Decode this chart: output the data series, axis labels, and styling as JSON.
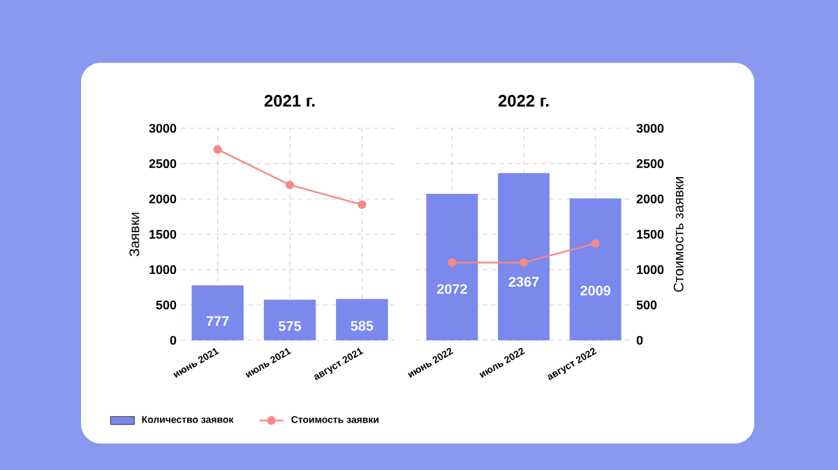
{
  "chart_data": [
    {
      "type": "bar",
      "title": "2021 г.",
      "ylabel": "Заявки",
      "categories": [
        "июнь 2021",
        "июль 2021",
        "август 2021"
      ],
      "ylim": [
        0,
        3000
      ],
      "yticks": [
        0,
        500,
        1000,
        1500,
        2000,
        2500,
        3000
      ],
      "grid": true,
      "legend": "bottom",
      "marker": "circle",
      "series": [
        {
          "name": "Количество заявок",
          "color": "#7b88ec",
          "values": [
            777,
            575,
            585
          ],
          "value_labels": [
            "777",
            "575",
            "585"
          ]
        },
        {
          "name": "Стоимость заявки",
          "type": "line",
          "color": "#f58a8a",
          "values": [
            2700,
            2200,
            1920
          ]
        }
      ]
    },
    {
      "type": "bar",
      "title": "2022 г.",
      "y2label": "Стоимость заявки",
      "categories": [
        "июнь 2022",
        "июль 2022",
        "август 2022"
      ],
      "y2lim": [
        0,
        3000
      ],
      "y2ticks": [
        0,
        500,
        1000,
        1500,
        2000,
        2500,
        3000
      ],
      "grid": true,
      "marker": "circle",
      "series": [
        {
          "axis": "y2",
          "color": "#7b88ec",
          "values": [
            2072,
            2367,
            2009
          ],
          "value_labels": [
            "2072",
            "2367",
            "2009"
          ]
        },
        {
          "type": "line",
          "axis": "y2",
          "color": "#f58a8a",
          "values": [
            1100,
            1100,
            1370
          ]
        }
      ]
    }
  ]
}
